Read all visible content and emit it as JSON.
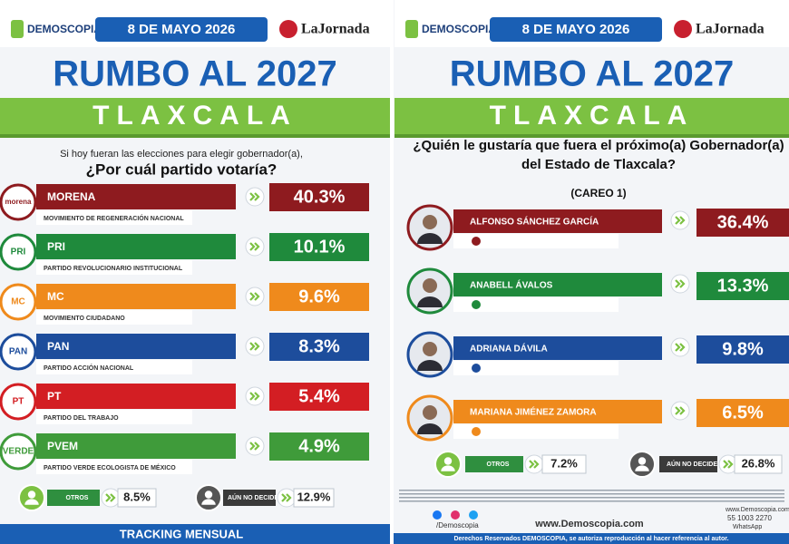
{
  "left": {
    "brand": "DEMOSCOPIA",
    "date": "8 DE MAYO 2026",
    "partner": "LaJornada",
    "title": "RUMBO AL 2027",
    "state": "TLAXCALA",
    "question": [
      "Si hoy fueran las elecciones para elegir gobernador(a),",
      "¿Por cuál partido votaría?"
    ],
    "rows": [
      {
        "logo": "morena",
        "name": "MORENA",
        "full": "MOVIMIENTO DE REGENERACIÓN NACIONAL",
        "pct": "40.3%",
        "color": "#8e1b1f"
      },
      {
        "logo": "PRI",
        "name": "PRI",
        "full": "PARTIDO REVOLUCIONARIO INSTITUCIONAL",
        "pct": "10.1%",
        "color": "#1f8a3c"
      },
      {
        "logo": "MC",
        "name": "MC",
        "full": "MOVIMIENTO CIUDADANO",
        "pct": "9.6%",
        "color": "#ef8a1c"
      },
      {
        "logo": "PAN",
        "name": "PAN",
        "full": "PARTIDO ACCIÓN NACIONAL",
        "pct": "8.3%",
        "color": "#1d4d9c"
      },
      {
        "logo": "PT",
        "name": "PT",
        "full": "PARTIDO DEL TRABAJO",
        "pct": "5.4%",
        "color": "#d31e23"
      },
      {
        "logo": "VERDE",
        "name": "PVEM",
        "full": "PARTIDO VERDE ECOLOGISTA DE MÉXICO",
        "pct": "4.9%",
        "color": "#3f9b3a"
      }
    ],
    "others": {
      "label": "OTROS",
      "pct": "8.5%"
    },
    "undecided": {
      "label": "AÚN NO DECIDE",
      "pct": "12.9%"
    },
    "footer": "TRACKING MENSUAL"
  },
  "right": {
    "brand": "DEMOSCOPIA",
    "date": "8 DE MAYO 2026",
    "partner": "LaJornada",
    "title": "RUMBO AL 2027",
    "state": "TLAXCALA",
    "question": [
      "¿Quién le gustaría que fuera el próximo(a) Gobernador(a)",
      "del Estado de Tlaxcala?"
    ],
    "matchup": "(CAREO 1)",
    "rows": [
      {
        "name": "ALFONSO SÁNCHEZ GARCÍA",
        "pct": "36.4%",
        "color": "#8e1b1f"
      },
      {
        "name": "ANABELL ÁVALOS",
        "pct": "13.3%",
        "color": "#1f8a3c"
      },
      {
        "name": "ADRIANA DÁVILA",
        "pct": "9.8%",
        "color": "#1d4d9c"
      },
      {
        "name": "MARIANA JIMÉNEZ ZAMORA",
        "pct": "6.5%",
        "color": "#ef8a1c"
      }
    ],
    "others": {
      "label": "OTROS",
      "pct": "7.2%"
    },
    "undecided": {
      "label": "AÚN NO DECIDE",
      "pct": "26.8%"
    },
    "social": "/Demoscopia",
    "site": "www.Demoscopia.com",
    "site_small": "www.Demoscopia.com",
    "phone": "55 1003 2270",
    "whatsapp": "WhatsApp",
    "rights": "Derechos Reservados DEMOSCOPIA, se autoriza reproducción al hacer referencia al autor."
  }
}
